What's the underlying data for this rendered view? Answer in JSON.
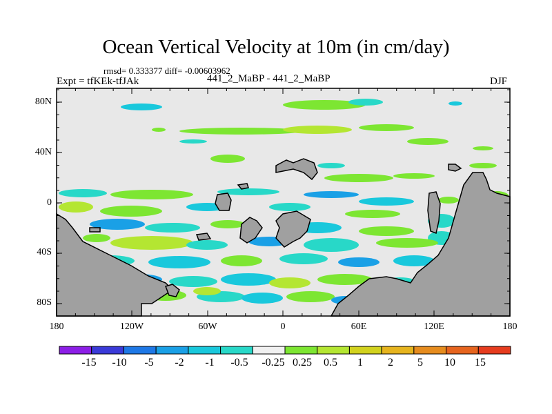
{
  "title": "Ocean Vertical Velocity at 10m (in cm/day)",
  "stats": "rmsd= 0.333377 diff= -0.00603962",
  "expt": "Expt = tfKEk-tfJAk",
  "case": "441_2_MaBP - 441_2_MaBP",
  "season": "DJF",
  "y_axis_labels": [
    "80N",
    "40N",
    "0",
    "40S",
    "80S"
  ],
  "x_axis_labels": [
    "180",
    "120W",
    "60W",
    "0",
    "60E",
    "120E",
    "180"
  ],
  "colorbar": {
    "labels": [
      "-15",
      "-10",
      "-5",
      "-2",
      "-1",
      "-0.5",
      "-0.25",
      "0.25",
      "0.5",
      "1",
      "2",
      "5",
      "10",
      "15"
    ],
    "colors": [
      "#8c1ee6",
      "#3a3ad8",
      "#1e78e6",
      "#1aa0e6",
      "#19c8dc",
      "#28d8c8",
      "#f0f0f0",
      "#7de632",
      "#b4e632",
      "#d2d21e",
      "#e6b41e",
      "#e68c1e",
      "#e6641e",
      "#e63c1e"
    ]
  },
  "palette": {
    "background": "#e8e8e8",
    "land": "#a0a0a0",
    "cyan": "#19c8dc",
    "teal": "#28d8c8",
    "blue": "#1aa0e6",
    "green": "#7de632",
    "yellowgreen": "#b4e632",
    "yellow": "#d2d21e"
  }
}
